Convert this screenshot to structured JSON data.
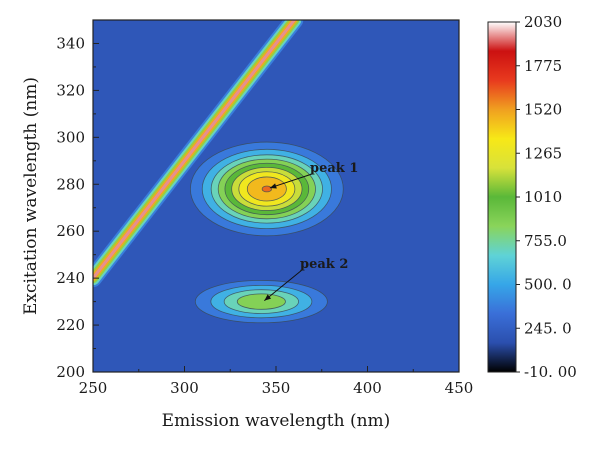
{
  "chart_data": {
    "type": "heatmap",
    "title": "",
    "xlabel": "Emission wavelength (nm)",
    "ylabel": "Excitation wavelength (nm)",
    "xlim": [
      250,
      450
    ],
    "ylim": [
      200,
      350
    ],
    "x_ticks": [
      250,
      300,
      350,
      400,
      450
    ],
    "x_tick_labels": [
      "250",
      "300",
      "350",
      "400",
      "450"
    ],
    "y_ticks": [
      200,
      220,
      240,
      260,
      280,
      300,
      320,
      340
    ],
    "y_tick_labels": [
      "200",
      "220",
      "240",
      "260",
      "280",
      "300",
      "320",
      "340"
    ],
    "colorbar": {
      "range": [
        -10.0,
        2030
      ],
      "labels": [
        "2030",
        "1775",
        "1520",
        "1265",
        "1010",
        "755.0",
        "500. 0",
        "245. 0",
        "-10. 00"
      ],
      "label_values": [
        2030,
        1775,
        1520,
        1265,
        1010,
        755,
        500,
        245,
        -10
      ],
      "colors": [
        "#000000",
        "#2b4fae",
        "#3a6fd8",
        "#36a6e8",
        "#5fd3d6",
        "#8ad45a",
        "#5ab839",
        "#d8e23a",
        "#f7e817",
        "#f0a020",
        "#e83a1e",
        "#cc1111",
        "#ffffff"
      ]
    },
    "peaks": [
      {
        "label": "peak 1",
        "em": 345,
        "ex": 278,
        "intensity": 1560,
        "sigma_em": 23,
        "sigma_ex": 11
      },
      {
        "label": "peak 2",
        "em": 342,
        "ex": 230,
        "intensity": 930,
        "sigma_em": 24,
        "sigma_ex": 6
      }
    ],
    "scatter_band": {
      "description": "Rayleigh scattering line",
      "em_start": 250,
      "ex_start": 240,
      "em_end": 360,
      "ex_end": 350,
      "intensity_max": 2030
    },
    "background_intensity": 200
  }
}
